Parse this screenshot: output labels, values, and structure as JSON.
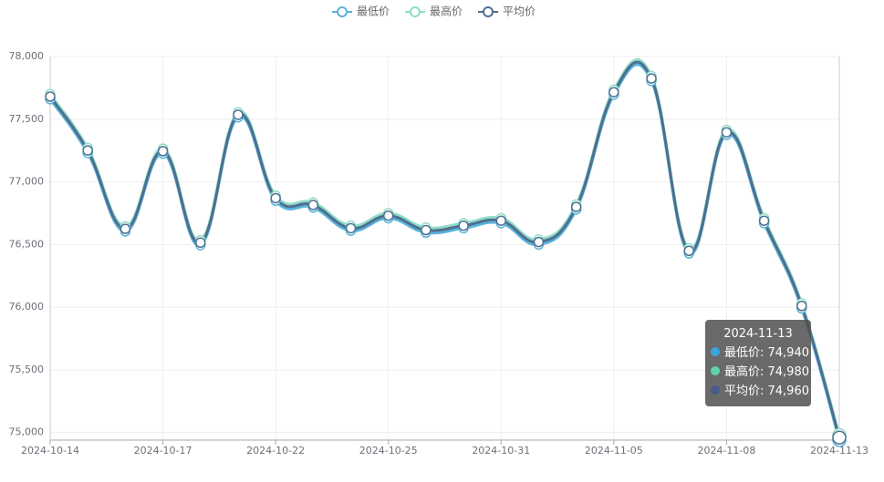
{
  "chart_data": {
    "type": "line",
    "categories": [
      "2024-10-14",
      null,
      null,
      "2024-10-17",
      null,
      null,
      "2024-10-22",
      null,
      null,
      "2024-10-25",
      null,
      null,
      "2024-10-31",
      null,
      null,
      "2024-11-05",
      null,
      null,
      "2024-11-08",
      null,
      null,
      "2024-11-13"
    ],
    "series": [
      {
        "name": "最低价",
        "color": "#5ab4d9",
        "values": [
          77660,
          77230,
          76605,
          77225,
          76495,
          77515,
          76850,
          76795,
          76610,
          76710,
          76595,
          76630,
          76670,
          76500,
          76780,
          77695,
          77805,
          76430,
          77375,
          76670,
          75990,
          74940
        ]
      },
      {
        "name": "最高价",
        "color": "#8fdcc8",
        "values": [
          77700,
          77270,
          76645,
          77265,
          76535,
          77555,
          76890,
          76835,
          76650,
          76750,
          76635,
          76670,
          76710,
          76540,
          76820,
          77735,
          77845,
          76470,
          77415,
          76710,
          76030,
          74980
        ]
      },
      {
        "name": "平均价",
        "color": "#4e6f8f",
        "values": [
          77680,
          77250,
          76625,
          77245,
          76515,
          77535,
          76870,
          76815,
          76630,
          76730,
          76615,
          76650,
          76690,
          76520,
          76800,
          77715,
          77825,
          76450,
          77395,
          76690,
          76010,
          74960
        ]
      }
    ],
    "ylim": [
      74940,
      78000
    ],
    "yticks": [
      {
        "value": 75000,
        "label": "75,000"
      },
      {
        "value": 75500,
        "label": "75,500"
      },
      {
        "value": 76000,
        "label": "76,000"
      },
      {
        "value": 76500,
        "label": "76,500"
      },
      {
        "value": 77000,
        "label": "77,000"
      },
      {
        "value": 77500,
        "label": "77,500"
      },
      {
        "value": 78000,
        "label": "78,000"
      }
    ],
    "grid": true,
    "legend": "top",
    "tooltip": {
      "title": "2024-11-13",
      "rows": [
        "最低价: 74,940",
        "最高价: 74,980",
        "平均价: 74,960"
      ],
      "colors": [
        "#3aa6dc",
        "#5fd3a8",
        "#4a5a8a"
      ]
    }
  }
}
